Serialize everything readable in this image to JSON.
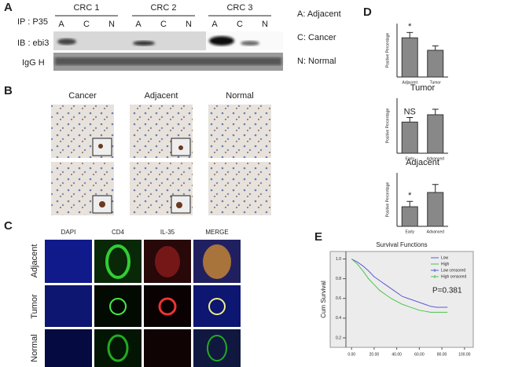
{
  "panel_labels": [
    "A",
    "B",
    "C",
    "D",
    "E"
  ],
  "panel_a": {
    "ip": "IP :  P35",
    "ib": "IB :  ebi3",
    "igg": "IgG H",
    "groups": [
      "CRC 1",
      "CRC 2",
      "CRC 3"
    ],
    "lanes": [
      "A",
      "C",
      "N"
    ],
    "legend": [
      "A: Adjacent",
      "C: Cancer",
      "N: Normal"
    ]
  },
  "panel_b": {
    "columns": [
      "Cancer",
      "Adjacent",
      "Normal"
    ]
  },
  "panel_c": {
    "columns": [
      "DAPI",
      "CD4",
      "IL-35",
      "MERGE"
    ],
    "rows": [
      "Adjacent",
      "Tumor",
      "Normal"
    ]
  },
  "chart_data": [
    {
      "type": "bar",
      "categories": [
        "Adjacent",
        "Tumor"
      ],
      "values": [
        22,
        15
      ],
      "errors": [
        3,
        2.5
      ],
      "color": "#888888",
      "ylabel": "Positive Percentage",
      "annotation": "*",
      "ylim": [
        0,
        30
      ]
    },
    {
      "type": "bar",
      "title": "Tumor",
      "categories": [
        "Early",
        "Advanced"
      ],
      "values": [
        17,
        21
      ],
      "errors": [
        2.5,
        3
      ],
      "color": "#888888",
      "ylabel": "Positive Percentage",
      "annotation": "NS",
      "ylim": [
        0,
        30
      ]
    },
    {
      "type": "bar",
      "title": "Adjacent",
      "categories": [
        "Early",
        "Advanced"
      ],
      "values": [
        11,
        19
      ],
      "errors": [
        3,
        4.5
      ],
      "color": "#888888",
      "ylabel": "Positive Percentage",
      "annotation": "*",
      "ylim": [
        0,
        30
      ]
    },
    {
      "type": "line",
      "title": "Survival Functions",
      "ylabel": "Cum Survival",
      "annotation": "P=0.381",
      "x": [
        0,
        5,
        10,
        15,
        20,
        25,
        30,
        35,
        40,
        45,
        50,
        55,
        60,
        65,
        70,
        75,
        80,
        85
      ],
      "series": [
        {
          "name": "Low",
          "color": "#5b5bd6",
          "values": [
            1,
            0.97,
            0.93,
            0.88,
            0.82,
            0.78,
            0.74,
            0.7,
            0.66,
            0.62,
            0.6,
            0.58,
            0.56,
            0.54,
            0.52,
            0.51,
            0.51,
            0.51
          ]
        },
        {
          "name": "High",
          "color": "#4cc24c",
          "values": [
            1,
            0.95,
            0.88,
            0.8,
            0.74,
            0.68,
            0.64,
            0.6,
            0.57,
            0.54,
            0.52,
            0.5,
            0.48,
            0.47,
            0.46,
            0.46,
            0.46,
            0.46
          ]
        }
      ],
      "legend_extra": [
        "Low censored",
        "High censored"
      ],
      "xlim": [
        -5,
        105
      ],
      "ylim": [
        0.12,
        1.06
      ],
      "xticks": [
        {
          "value": 0,
          "label": "0.00"
        },
        {
          "value": 20,
          "label": "20.00"
        },
        {
          "value": 40,
          "label": "40.00"
        },
        {
          "value": 60,
          "label": "60.00"
        },
        {
          "value": 80,
          "label": "80.00"
        },
        {
          "value": 100,
          "label": "100.00"
        }
      ],
      "yticks": [
        0.2,
        0.4,
        0.6,
        0.8,
        {
          "value": 1.0,
          "label": "1.0"
        }
      ]
    }
  ]
}
